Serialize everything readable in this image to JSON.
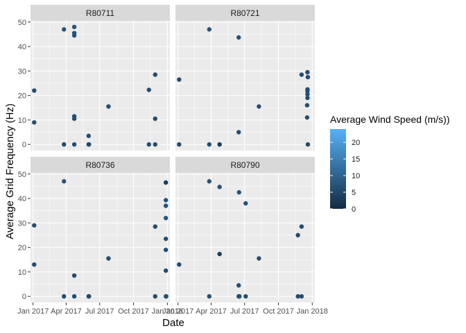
{
  "chart_data": {
    "type": "scatter",
    "title": "",
    "xlabel": "Date",
    "ylabel": "Average Grid Frequency (Hz)",
    "x_type": "date",
    "xlim": [
      "2016-12-25",
      "2018-01-08"
    ],
    "ylim": [
      -2.5,
      50.5
    ],
    "x_ticks": [
      {
        "date": "2017-01-01",
        "label": "Jan 2017"
      },
      {
        "date": "2017-04-01",
        "label": "Apr 2017"
      },
      {
        "date": "2017-07-01",
        "label": "Jul 2017"
      },
      {
        "date": "2017-10-01",
        "label": "Oct 2017"
      },
      {
        "date": "2018-01-01",
        "label": "Jan 2018"
      }
    ],
    "y_ticks": [
      0,
      10,
      20,
      30,
      40,
      50
    ],
    "grid": true,
    "legend": {
      "title": "Average Wind Speed (m/s))",
      "position": "right",
      "ticks": [
        0,
        5,
        10,
        15,
        20
      ],
      "range": [
        0,
        24
      ],
      "color_low": "#132B43",
      "color_high": "#56B1F7"
    },
    "panels": [
      {
        "label": "R80711",
        "points": [
          {
            "x": "2017-01-04",
            "y": 22,
            "w": 6
          },
          {
            "x": "2017-01-04",
            "y": 9,
            "w": 6
          },
          {
            "x": "2017-03-26",
            "y": 47,
            "w": 7
          },
          {
            "x": "2017-03-26",
            "y": 0,
            "w": 6
          },
          {
            "x": "2017-04-23",
            "y": 48,
            "w": 7
          },
          {
            "x": "2017-04-23",
            "y": 45.5,
            "w": 7
          },
          {
            "x": "2017-04-23",
            "y": 44.5,
            "w": 7
          },
          {
            "x": "2017-04-23",
            "y": 11.5,
            "w": 6
          },
          {
            "x": "2017-04-23",
            "y": 10.5,
            "w": 6
          },
          {
            "x": "2017-04-23",
            "y": 0,
            "w": 6
          },
          {
            "x": "2017-06-01",
            "y": 3.5,
            "w": 6
          },
          {
            "x": "2017-06-01",
            "y": 0,
            "w": 6
          },
          {
            "x": "2017-06-02",
            "y": 0,
            "w": 6
          },
          {
            "x": "2017-07-25",
            "y": 15.5,
            "w": 6
          },
          {
            "x": "2017-11-12",
            "y": 22.3,
            "w": 6
          },
          {
            "x": "2017-11-12",
            "y": 0,
            "w": 6
          },
          {
            "x": "2017-11-29",
            "y": 28.5,
            "w": 6
          },
          {
            "x": "2017-11-29",
            "y": 10.5,
            "w": 6
          },
          {
            "x": "2017-11-29",
            "y": 0,
            "w": 6
          }
        ]
      },
      {
        "label": "R80721",
        "points": [
          {
            "x": "2017-01-04",
            "y": 26.5,
            "w": 6
          },
          {
            "x": "2017-01-04",
            "y": 0,
            "w": 6
          },
          {
            "x": "2017-03-27",
            "y": 47,
            "w": 7
          },
          {
            "x": "2017-03-27",
            "y": 0,
            "w": 6
          },
          {
            "x": "2017-04-24",
            "y": 0,
            "w": 3
          },
          {
            "x": "2017-06-15",
            "y": 43.7,
            "w": 7
          },
          {
            "x": "2017-06-15",
            "y": 5,
            "w": 6
          },
          {
            "x": "2017-08-09",
            "y": 15.5,
            "w": 6
          },
          {
            "x": "2017-12-03",
            "y": 28.5,
            "w": 6
          },
          {
            "x": "2017-12-19",
            "y": 29.5,
            "w": 6
          },
          {
            "x": "2017-12-20",
            "y": 27.5,
            "w": 6
          },
          {
            "x": "2017-12-19",
            "y": 22.5,
            "w": 6
          },
          {
            "x": "2017-12-19",
            "y": 21.8,
            "w": 6
          },
          {
            "x": "2017-12-19",
            "y": 20.5,
            "w": 6
          },
          {
            "x": "2017-12-19",
            "y": 19,
            "w": 6
          },
          {
            "x": "2017-12-18",
            "y": 16,
            "w": 6
          },
          {
            "x": "2017-12-18",
            "y": 11,
            "w": 6
          },
          {
            "x": "2017-12-20",
            "y": 0,
            "w": 6
          }
        ]
      },
      {
        "label": "R80736",
        "points": [
          {
            "x": "2017-01-04",
            "y": 29,
            "w": 6
          },
          {
            "x": "2017-01-04",
            "y": 13,
            "w": 6
          },
          {
            "x": "2017-03-26",
            "y": 47,
            "w": 7
          },
          {
            "x": "2017-03-26",
            "y": 0,
            "w": 6
          },
          {
            "x": "2017-04-23",
            "y": 8.5,
            "w": 6
          },
          {
            "x": "2017-04-23",
            "y": 0,
            "w": 6
          },
          {
            "x": "2017-06-01",
            "y": 0,
            "w": 6
          },
          {
            "x": "2017-06-02",
            "y": 0,
            "w": 6
          },
          {
            "x": "2017-07-25",
            "y": 15.5,
            "w": 6
          },
          {
            "x": "2017-11-29",
            "y": 28.5,
            "w": 6
          },
          {
            "x": "2017-11-29",
            "y": 0,
            "w": 6
          },
          {
            "x": "2017-12-28",
            "y": 46.5,
            "w": 3
          },
          {
            "x": "2017-12-28",
            "y": 39.3,
            "w": 7
          },
          {
            "x": "2017-12-28",
            "y": 37,
            "w": 7
          },
          {
            "x": "2017-12-28",
            "y": 32,
            "w": 7
          },
          {
            "x": "2017-12-28",
            "y": 23.5,
            "w": 6
          },
          {
            "x": "2017-12-28",
            "y": 19,
            "w": 6
          },
          {
            "x": "2017-12-28",
            "y": 10.5,
            "w": 6
          },
          {
            "x": "2017-12-28",
            "y": 0,
            "w": 6
          },
          {
            "x": "2017-12-29",
            "y": 0,
            "w": 6
          }
        ]
      },
      {
        "label": "R80790",
        "points": [
          {
            "x": "2017-01-04",
            "y": 13,
            "w": 6
          },
          {
            "x": "2017-03-27",
            "y": 47,
            "w": 7
          },
          {
            "x": "2017-03-27",
            "y": 0,
            "w": 6
          },
          {
            "x": "2017-04-24",
            "y": 44.7,
            "w": 7
          },
          {
            "x": "2017-04-24",
            "y": 17.3,
            "w": 3
          },
          {
            "x": "2017-06-16",
            "y": 42.5,
            "w": 7
          },
          {
            "x": "2017-06-15",
            "y": 4.5,
            "w": 6
          },
          {
            "x": "2017-06-15",
            "y": 0,
            "w": 6
          },
          {
            "x": "2017-06-16",
            "y": 0,
            "w": 6
          },
          {
            "x": "2017-06-17",
            "y": 0,
            "w": 6
          },
          {
            "x": "2017-07-04",
            "y": 38,
            "w": 7
          },
          {
            "x": "2017-07-04",
            "y": 0,
            "w": 6
          },
          {
            "x": "2017-08-09",
            "y": 15.5,
            "w": 6
          },
          {
            "x": "2017-11-23",
            "y": 25,
            "w": 6
          },
          {
            "x": "2017-11-23",
            "y": 0,
            "w": 6
          },
          {
            "x": "2017-12-03",
            "y": 28.5,
            "w": 6
          },
          {
            "x": "2017-12-03",
            "y": 0,
            "w": 6
          }
        ]
      }
    ]
  }
}
